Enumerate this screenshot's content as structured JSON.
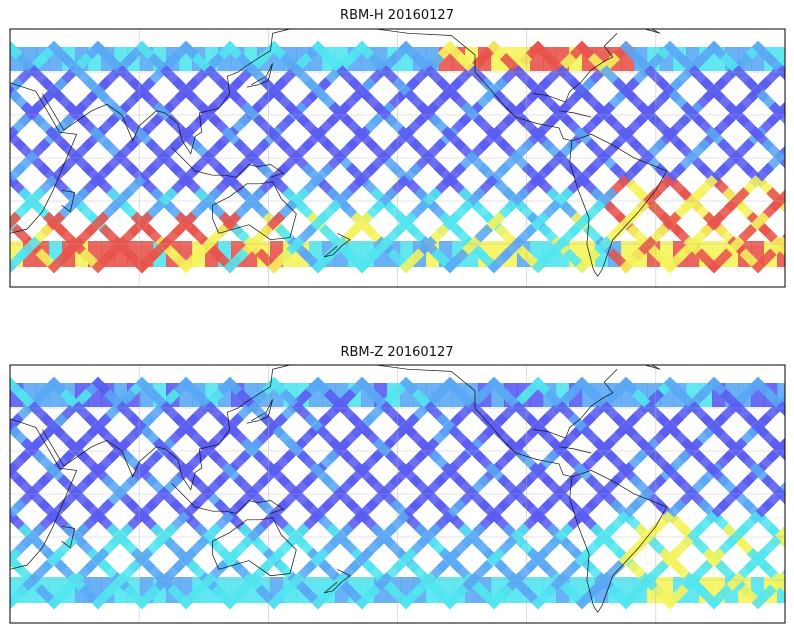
{
  "figure": {
    "panels": [
      {
        "title": "RBM-H 20160127",
        "hot_band": "high"
      },
      {
        "title": "RBM-Z 20160127",
        "hot_band": "low"
      }
    ],
    "map": {
      "projection": "equirectangular",
      "lon_range": [
        20,
        380
      ],
      "lat_range": [
        -60,
        60
      ],
      "gridlines": true,
      "coastlines": true,
      "colormap": "jet-like (blue low, red high)",
      "data_lat_extent": [
        -50,
        50
      ]
    },
    "colors": {
      "low": "#5a5cf2",
      "mid_low": "#5aa8f5",
      "mid": "#52e6f0",
      "mid_high": "#f6f45c",
      "high": "#e8544c"
    }
  }
}
